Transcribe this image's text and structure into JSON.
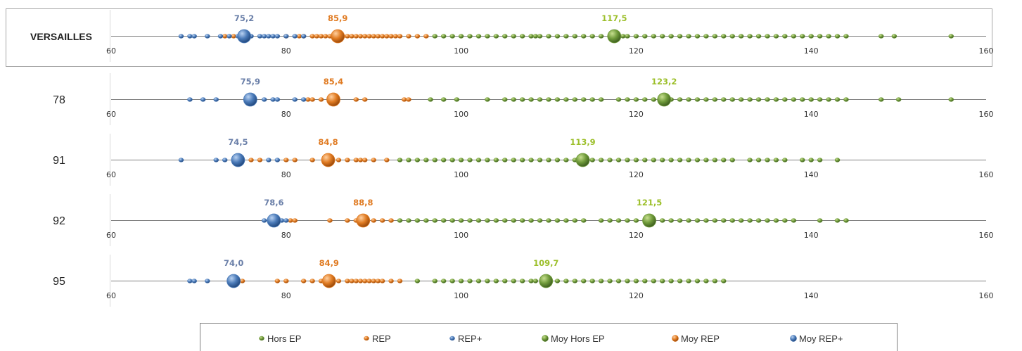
{
  "chart_data": {
    "type": "scatter",
    "xlim": [
      60,
      160
    ],
    "xticks": [
      60,
      80,
      100,
      120,
      140,
      160
    ],
    "grid": false,
    "legend_position": "bottom",
    "colors": {
      "hors_ep": "#6f9a3a",
      "rep": "#e07b22",
      "rep_plus": "#4a7ab8",
      "label_hors_ep": "#9cbf2a",
      "label_rep": "#e07b22",
      "label_rep_plus": "#6a7fa8"
    },
    "legend": [
      {
        "label": "Hors EP",
        "series": "hors_ep",
        "kind": "point"
      },
      {
        "label": "REP",
        "series": "rep",
        "kind": "point"
      },
      {
        "label": "REP+",
        "series": "rep_plus",
        "kind": "point"
      },
      {
        "label": "Moy Hors EP",
        "series": "hors_ep",
        "kind": "mean"
      },
      {
        "label": "Moy REP",
        "series": "rep",
        "kind": "mean"
      },
      {
        "label": "Moy REP+",
        "series": "rep_plus",
        "kind": "mean"
      }
    ],
    "rows": [
      {
        "label": "VERSAILLES",
        "means": {
          "rep_plus": 75.2,
          "rep": 85.9,
          "hors_ep": 117.5
        },
        "mean_labels": {
          "rep_plus": "75,2",
          "rep": "85,9",
          "hors_ep": "117,5"
        },
        "points": {
          "rep_plus": [
            68,
            69,
            69.5,
            71,
            72.5,
            73.5,
            74.5,
            76,
            77,
            77.5,
            78,
            78.5,
            79,
            80,
            81,
            82
          ],
          "rep": [
            73,
            74,
            80,
            81.5,
            82,
            83,
            83.5,
            84,
            84.5,
            85,
            86,
            86.5,
            87,
            87.5,
            88,
            88.5,
            89,
            89.5,
            90,
            90.5,
            91,
            91.5,
            92,
            92.5,
            93,
            94,
            95,
            96
          ],
          "hors_ep": [
            97,
            98,
            99,
            100,
            101,
            102,
            103,
            104,
            105,
            106,
            107,
            108,
            108.5,
            109,
            110,
            111,
            112,
            113,
            114,
            115,
            116,
            117,
            118,
            118.5,
            119,
            120,
            121,
            122,
            123,
            124,
            125,
            126,
            127,
            128,
            129,
            130,
            131,
            132,
            133,
            134,
            135,
            136,
            137,
            138,
            139,
            140,
            141,
            142,
            143,
            144,
            148,
            149.5,
            156
          ]
        }
      },
      {
        "label": "78",
        "means": {
          "rep_plus": 75.9,
          "rep": 85.4,
          "hors_ep": 123.2
        },
        "mean_labels": {
          "rep_plus": "75,9",
          "rep": "85,4",
          "hors_ep": "123,2"
        },
        "points": {
          "rep_plus": [
            69,
            70.5,
            72,
            77.5,
            78.5,
            79,
            81,
            82
          ],
          "rep": [
            82.5,
            83,
            84,
            88,
            89,
            93.5,
            94
          ],
          "hors_ep": [
            96.5,
            98,
            99.5,
            103,
            105,
            106,
            107,
            108,
            109,
            110,
            111,
            112,
            113,
            114,
            115,
            116,
            118,
            119,
            120,
            121,
            122,
            124,
            125,
            126,
            127,
            128,
            129,
            130,
            131,
            132,
            133,
            134,
            135,
            136,
            137,
            138,
            139,
            140,
            141,
            142,
            143,
            144,
            148,
            150,
            156
          ]
        }
      },
      {
        "label": "91",
        "means": {
          "rep_plus": 74.5,
          "rep": 84.8,
          "hors_ep": 113.9
        },
        "mean_labels": {
          "rep_plus": "74,5",
          "rep": "84,8",
          "hors_ep": "113,9"
        },
        "points": {
          "rep_plus": [
            68,
            72,
            73,
            78,
            79
          ],
          "rep": [
            76,
            77,
            80,
            81,
            83,
            86,
            87,
            88,
            88.5,
            89,
            90,
            91.5
          ],
          "hors_ep": [
            93,
            94,
            95,
            96,
            97,
            98,
            99,
            100,
            101,
            102,
            103,
            104,
            105,
            106,
            107,
            108,
            109,
            110,
            111,
            112,
            113,
            115,
            116,
            117,
            118,
            119,
            120,
            121,
            122,
            123,
            124,
            125,
            126,
            127,
            128,
            129,
            130,
            131,
            133,
            134,
            135,
            136,
            137,
            139,
            140,
            141,
            143
          ]
        }
      },
      {
        "label": "92",
        "means": {
          "rep_plus": 78.6,
          "rep": 88.8,
          "hors_ep": 121.5
        },
        "mean_labels": {
          "rep_plus": "78,6",
          "rep": "88,8",
          "hors_ep": "121,5"
        },
        "points": {
          "rep_plus": [
            77.5,
            79.5,
            80
          ],
          "rep": [
            80.5,
            81,
            85,
            87,
            88,
            90,
            91,
            92
          ],
          "hors_ep": [
            93,
            94,
            95,
            96,
            97,
            98,
            99,
            100,
            101,
            102,
            103,
            104,
            105,
            106,
            107,
            108,
            109,
            110,
            111,
            112,
            113,
            114,
            116,
            117,
            118,
            119,
            120,
            122,
            123,
            124,
            125,
            126,
            127,
            128,
            129,
            130,
            131,
            132,
            133,
            134,
            135,
            136,
            137,
            138,
            141,
            143,
            144
          ]
        }
      },
      {
        "label": "95",
        "means": {
          "rep_plus": 74.0,
          "rep": 84.9,
          "hors_ep": 109.7
        },
        "mean_labels": {
          "rep_plus": "74,0",
          "rep": "84,9",
          "hors_ep": "109,7"
        },
        "points": {
          "rep_plus": [
            69,
            69.5,
            71,
            74.5
          ],
          "rep": [
            75,
            79,
            80,
            82,
            83,
            84,
            86,
            87,
            87.5,
            88,
            88.5,
            89,
            89.5,
            90,
            90.5,
            91,
            92,
            93
          ],
          "hors_ep": [
            95,
            97,
            98,
            99,
            100,
            101,
            102,
            103,
            104,
            105,
            106,
            107,
            108,
            108.5,
            111,
            112,
            113,
            114,
            115,
            116,
            117,
            118,
            119,
            120,
            121,
            122,
            123,
            124,
            125,
            126,
            127,
            128,
            129,
            130
          ]
        }
      }
    ]
  }
}
